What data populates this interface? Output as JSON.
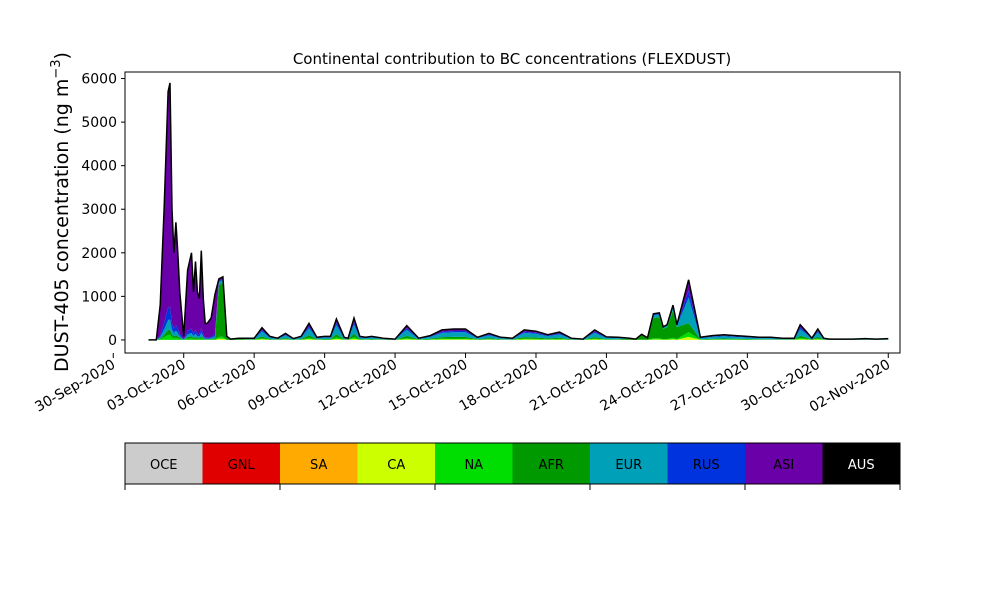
{
  "chart_data": {
    "type": "area",
    "title": "Continental contribution to BC concentrations (FLEXDUST)",
    "ylabel": "DUST-405 concentration (ng m",
    "ylabel_exponent": "−3",
    "ylabel_close": ")",
    "ylim": [
      -300,
      6150
    ],
    "yticks": [
      0,
      1000,
      2000,
      3000,
      4000,
      5000,
      6000
    ],
    "xlim": [
      "2020-09-30T12:00",
      "2020-11-02T12:00"
    ],
    "xticks": [
      "30-Sep-2020",
      "03-Oct-2020",
      "06-Oct-2020",
      "09-Oct-2020",
      "12-Oct-2020",
      "15-Oct-2020",
      "18-Oct-2020",
      "21-Oct-2020",
      "24-Oct-2020",
      "27-Oct-2020",
      "30-Oct-2020",
      "02-Nov-2020"
    ],
    "grid": false,
    "stack_order": [
      "OCE",
      "GNL",
      "SA",
      "CA",
      "NA",
      "AFR",
      "EUR",
      "RUS",
      "ASI",
      "AUS"
    ],
    "total": {
      "x": [
        "2020-10-01T12:00",
        "2020-10-01T20:00",
        "2020-10-02T00:00",
        "2020-10-02T04:00",
        "2020-10-02T08:00",
        "2020-10-02T10:00",
        "2020-10-02T12:00",
        "2020-10-02T14:00",
        "2020-10-02T16:00",
        "2020-10-02T18:00",
        "2020-10-02T20:00",
        "2020-10-03T00:00",
        "2020-10-03T04:00",
        "2020-10-03T08:00",
        "2020-10-03T10:00",
        "2020-10-03T12:00",
        "2020-10-03T14:00",
        "2020-10-03T16:00",
        "2020-10-03T18:00",
        "2020-10-03T20:00",
        "2020-10-03T22:00",
        "2020-10-04T00:00",
        "2020-10-04T04:00",
        "2020-10-04T08:00",
        "2020-10-04T12:00",
        "2020-10-04T16:00",
        "2020-10-04T20:00",
        "2020-10-05T00:00",
        "2020-10-05T08:00",
        "2020-10-05T16:00",
        "2020-10-06T00:00",
        "2020-10-06T08:00",
        "2020-10-06T16:00",
        "2020-10-07T00:00",
        "2020-10-07T08:00",
        "2020-10-07T16:00",
        "2020-10-08T00:00",
        "2020-10-08T08:00",
        "2020-10-08T16:00",
        "2020-10-09T00:00",
        "2020-10-09T06:00",
        "2020-10-09T12:00",
        "2020-10-09T20:00",
        "2020-10-10T00:00",
        "2020-10-10T06:00",
        "2020-10-10T12:00",
        "2020-10-10T18:00",
        "2020-10-11T00:00",
        "2020-10-11T12:00",
        "2020-10-12T00:00",
        "2020-10-12T12:00",
        "2020-10-13T00:00",
        "2020-10-13T12:00",
        "2020-10-14T00:00",
        "2020-10-14T12:00",
        "2020-10-15T00:00",
        "2020-10-15T12:00",
        "2020-10-16T00:00",
        "2020-10-16T12:00",
        "2020-10-17T00:00",
        "2020-10-17T12:00",
        "2020-10-18T00:00",
        "2020-10-18T12:00",
        "2020-10-19T00:00",
        "2020-10-19T12:00",
        "2020-10-20T00:00",
        "2020-10-20T12:00",
        "2020-10-21T00:00",
        "2020-10-21T12:00",
        "2020-10-22T00:00",
        "2020-10-22T06:00",
        "2020-10-22T12:00",
        "2020-10-22T18:00",
        "2020-10-23T00:00",
        "2020-10-23T06:00",
        "2020-10-23T10:00",
        "2020-10-23T14:00",
        "2020-10-23T20:00",
        "2020-10-24T00:00",
        "2020-10-24T12:00",
        "2020-10-25T00:00",
        "2020-10-25T12:00",
        "2020-10-26T00:00",
        "2020-10-26T12:00",
        "2020-10-27T00:00",
        "2020-10-27T12:00",
        "2020-10-28T00:00",
        "2020-10-28T12:00",
        "2020-10-29T00:00",
        "2020-10-29T06:00",
        "2020-10-29T12:00",
        "2020-10-29T18:00",
        "2020-10-30T00:00",
        "2020-10-30T06:00",
        "2020-10-30T12:00",
        "2020-10-31T00:00",
        "2020-10-31T12:00",
        "2020-11-01T00:00",
        "2020-11-01T12:00",
        "2020-11-02T00:00"
      ],
      "values": [
        0,
        0,
        800,
        3000,
        5700,
        5900,
        3000,
        2000,
        2700,
        2000,
        1100,
        80,
        1600,
        2000,
        1100,
        1800,
        1100,
        950,
        2050,
        950,
        380,
        380,
        500,
        1050,
        1400,
        1450,
        80,
        20,
        40,
        40,
        40,
        280,
        80,
        40,
        150,
        30,
        80,
        380,
        60,
        80,
        80,
        480,
        60,
        40,
        500,
        80,
        60,
        80,
        40,
        20,
        330,
        40,
        100,
        230,
        250,
        250,
        60,
        150,
        60,
        40,
        230,
        200,
        120,
        180,
        40,
        20,
        230,
        70,
        60,
        40,
        20,
        130,
        50,
        600,
        620,
        300,
        350,
        800,
        350,
        1380,
        60,
        100,
        120,
        100,
        80,
        60,
        60,
        40,
        40,
        350,
        200,
        40,
        250,
        40,
        20,
        20,
        20,
        30,
        20,
        30
      ]
    },
    "series_shares": {
      "ASI": "dominant 01-Oct to 05-Oct",
      "AFR": "dominant 05-Oct and 22-Oct to 24-Oct"
    },
    "legend": {
      "placement": "colorbar below plot",
      "labels": [
        "OCE",
        "GNL",
        "SA",
        "CA",
        "NA",
        "AFR",
        "EUR",
        "RUS",
        "ASI",
        "AUS"
      ],
      "colors": [
        "#cccccc",
        "#e00000",
        "#ffaa00",
        "#ccff00",
        "#00dd00",
        "#009900",
        "#00a0b8",
        "#0033dd",
        "#6a00a8",
        "#000000"
      ],
      "text_colors": [
        "#000000",
        "#000000",
        "#000000",
        "#000000",
        "#000000",
        "#000000",
        "#000000",
        "#000000",
        "#000000",
        "#ffffff"
      ]
    }
  }
}
